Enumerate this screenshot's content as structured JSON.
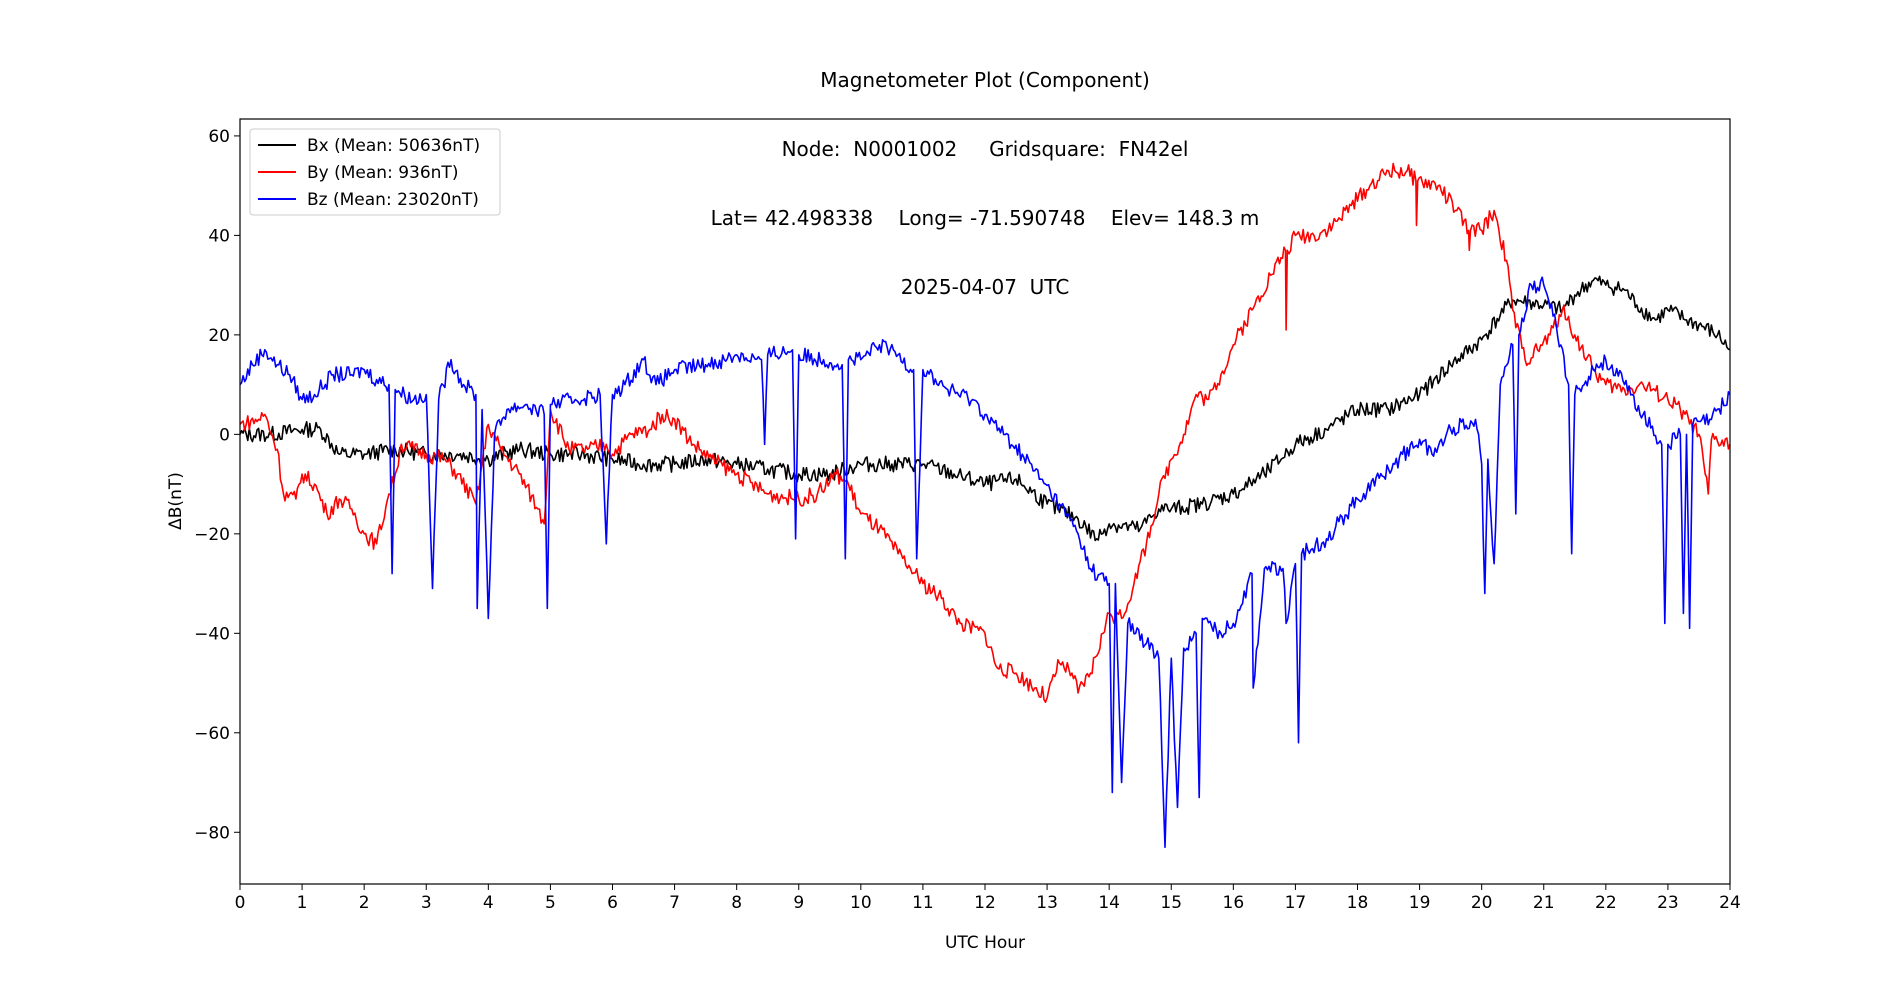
{
  "chart_data": {
    "type": "line",
    "title_lines": [
      "Magnetometer Plot (Component)",
      "Node:  N0001002     Gridsquare:  FN42el",
      "Lat= 42.498338    Long= -71.590748    Elev= 148.3 m",
      "2025-04-07  UTC"
    ],
    "xlabel": "UTC Hour",
    "ylabel": "ΔB(nT)",
    "xlim": [
      0,
      24
    ],
    "ylim": [
      -90.4,
      63.4
    ],
    "xticks": [
      0,
      1,
      2,
      3,
      4,
      5,
      6,
      7,
      8,
      9,
      10,
      11,
      12,
      13,
      14,
      15,
      16,
      17,
      18,
      19,
      20,
      21,
      22,
      23,
      24
    ],
    "yticks": [
      -80,
      -60,
      -40,
      -20,
      0,
      20,
      40,
      60
    ],
    "grid": false,
    "legend_position": "top-left",
    "series": [
      {
        "name": "Bx (Mean: 50636nT)",
        "color": "#000000",
        "points": [
          [
            0,
            0
          ],
          [
            0.5,
            0
          ],
          [
            1,
            1
          ],
          [
            1.3,
            1
          ],
          [
            1.6,
            -4
          ],
          [
            2,
            -4
          ],
          [
            2.5,
            -3
          ],
          [
            3,
            -4
          ],
          [
            3.5,
            -4
          ],
          [
            4,
            -5
          ],
          [
            4.5,
            -3
          ],
          [
            5,
            -4
          ],
          [
            5.5,
            -4
          ],
          [
            6,
            -5
          ],
          [
            6.5,
            -6
          ],
          [
            7,
            -6
          ],
          [
            7.5,
            -5
          ],
          [
            8,
            -6
          ],
          [
            8.5,
            -7
          ],
          [
            9,
            -8
          ],
          [
            9.5,
            -8
          ],
          [
            10,
            -6
          ],
          [
            10.5,
            -6
          ],
          [
            11,
            -6
          ],
          [
            11.5,
            -8
          ],
          [
            12,
            -10
          ],
          [
            12.5,
            -9
          ],
          [
            13,
            -14
          ],
          [
            13.5,
            -17
          ],
          [
            13.8,
            -21
          ],
          [
            14,
            -18
          ],
          [
            14.5,
            -19
          ],
          [
            14.8,
            -15
          ],
          [
            15,
            -15
          ],
          [
            15.5,
            -14
          ],
          [
            16,
            -12
          ],
          [
            16.5,
            -8
          ],
          [
            17,
            -2
          ],
          [
            17.5,
            1
          ],
          [
            18,
            5
          ],
          [
            18.5,
            5
          ],
          [
            19,
            8
          ],
          [
            19.5,
            14
          ],
          [
            20,
            19
          ],
          [
            20.3,
            24
          ],
          [
            20.5,
            27
          ],
          [
            21,
            26
          ],
          [
            21.3,
            25
          ],
          [
            21.5,
            28
          ],
          [
            21.8,
            31
          ],
          [
            22,
            30
          ],
          [
            22.3,
            29
          ],
          [
            22.5,
            26
          ],
          [
            22.8,
            23
          ],
          [
            23,
            25
          ],
          [
            23.3,
            23
          ],
          [
            23.5,
            22
          ],
          [
            23.8,
            20
          ],
          [
            24,
            17
          ]
        ]
      },
      {
        "name": "By (Mean: 936nT)",
        "color": "#ff0000",
        "points": [
          [
            0,
            2
          ],
          [
            0.3,
            3
          ],
          [
            0.4,
            4
          ],
          [
            0.6,
            -3
          ],
          [
            0.7,
            -12
          ],
          [
            0.9,
            -13
          ],
          [
            1,
            -8
          ],
          [
            1.2,
            -10
          ],
          [
            1.4,
            -16
          ],
          [
            1.6,
            -13
          ],
          [
            1.8,
            -15
          ],
          [
            2,
            -20
          ],
          [
            2.2,
            -22
          ],
          [
            2.4,
            -12
          ],
          [
            2.5,
            -8
          ],
          [
            2.6,
            -2
          ],
          [
            3,
            -4
          ],
          [
            3.3,
            -5
          ],
          [
            3.5,
            -8
          ],
          [
            3.8,
            -14
          ],
          [
            4,
            2
          ],
          [
            4.2,
            -3
          ],
          [
            4.5,
            -8
          ],
          [
            4.8,
            -15
          ],
          [
            4.9,
            -18
          ],
          [
            5,
            5
          ],
          [
            5.3,
            -3
          ],
          [
            5.6,
            -3
          ],
          [
            5.9,
            -2
          ],
          [
            6,
            -4
          ],
          [
            6.3,
            0
          ],
          [
            6.6,
            1
          ],
          [
            6.8,
            4
          ],
          [
            7,
            3
          ],
          [
            7.3,
            -2
          ],
          [
            7.6,
            -5
          ],
          [
            8,
            -8
          ],
          [
            8.5,
            -12
          ],
          [
            9,
            -13
          ],
          [
            9.3,
            -12
          ],
          [
            9.6,
            -8
          ],
          [
            9.8,
            -10
          ],
          [
            10,
            -16
          ],
          [
            10.3,
            -19
          ],
          [
            10.6,
            -24
          ],
          [
            10.8,
            -27
          ],
          [
            11,
            -30
          ],
          [
            11.3,
            -33
          ],
          [
            11.6,
            -38
          ],
          [
            12,
            -40
          ],
          [
            12.2,
            -47
          ],
          [
            12.5,
            -48
          ],
          [
            12.8,
            -51
          ],
          [
            13,
            -53
          ],
          [
            13.2,
            -46
          ],
          [
            13.4,
            -48
          ],
          [
            13.5,
            -52
          ],
          [
            13.7,
            -48
          ],
          [
            13.9,
            -40
          ],
          [
            14,
            -36
          ],
          [
            14.2,
            -37
          ],
          [
            14.4,
            -30
          ],
          [
            14.6,
            -22
          ],
          [
            14.8,
            -12
          ],
          [
            15,
            -5
          ],
          [
            15.2,
            0
          ],
          [
            15.4,
            8
          ],
          [
            15.6,
            7
          ],
          [
            15.8,
            12
          ],
          [
            16,
            18
          ],
          [
            16.3,
            25
          ],
          [
            16.6,
            32
          ],
          [
            16.84,
            37
          ],
          [
            16.85,
            21
          ],
          [
            16.87,
            37
          ],
          [
            17,
            40
          ],
          [
            17.3,
            40
          ],
          [
            17.6,
            42
          ],
          [
            17.9,
            46
          ],
          [
            18.2,
            50
          ],
          [
            18.5,
            53
          ],
          [
            18.8,
            53
          ],
          [
            18.94,
            51
          ],
          [
            18.95,
            42
          ],
          [
            18.97,
            51
          ],
          [
            19.3,
            50
          ],
          [
            19.6,
            45
          ],
          [
            19.79,
            41
          ],
          [
            19.8,
            37
          ],
          [
            19.82,
            41
          ],
          [
            20,
            41
          ],
          [
            20.2,
            45
          ],
          [
            20.4,
            35
          ],
          [
            20.5,
            25
          ],
          [
            20.7,
            15
          ],
          [
            20.9,
            17
          ],
          [
            21.1,
            20
          ],
          [
            21.3,
            25
          ],
          [
            21.5,
            20
          ],
          [
            21.8,
            13
          ],
          [
            22,
            10
          ],
          [
            22.3,
            9
          ],
          [
            22.6,
            10
          ],
          [
            23,
            7
          ],
          [
            23.2,
            5
          ],
          [
            23.5,
            0
          ],
          [
            23.65,
            -12
          ],
          [
            23.7,
            -1
          ],
          [
            24,
            -2
          ]
        ]
      },
      {
        "name": "Bz (Mean: 23020nT)",
        "color": "#0000ff",
        "points": [
          [
            0,
            10
          ],
          [
            0.2,
            14
          ],
          [
            0.4,
            17
          ],
          [
            0.6,
            14
          ],
          [
            0.8,
            12
          ],
          [
            1,
            7
          ],
          [
            1.2,
            8
          ],
          [
            1.5,
            12
          ],
          [
            1.8,
            12
          ],
          [
            2,
            13
          ],
          [
            2.2,
            11
          ],
          [
            2.4,
            10
          ],
          [
            2.45,
            -28
          ],
          [
            2.5,
            9
          ],
          [
            2.8,
            7
          ],
          [
            3,
            8
          ],
          [
            3.1,
            -31
          ],
          [
            3.2,
            7
          ],
          [
            3.4,
            15
          ],
          [
            3.6,
            10
          ],
          [
            3.8,
            8
          ],
          [
            3.82,
            -35
          ],
          [
            3.9,
            5
          ],
          [
            4.0,
            -37
          ],
          [
            4.1,
            0
          ],
          [
            4.3,
            5
          ],
          [
            4.6,
            6
          ],
          [
            4.9,
            4
          ],
          [
            4.95,
            -35
          ],
          [
            5.0,
            6
          ],
          [
            5.4,
            7
          ],
          [
            5.8,
            8
          ],
          [
            5.9,
            -22
          ],
          [
            6,
            8
          ],
          [
            6.2,
            10
          ],
          [
            6.5,
            15
          ],
          [
            6.7,
            10
          ],
          [
            7,
            13
          ],
          [
            7.5,
            14
          ],
          [
            7.8,
            15
          ],
          [
            8,
            16
          ],
          [
            8.4,
            15
          ],
          [
            8.45,
            -2
          ],
          [
            8.5,
            16
          ],
          [
            8.9,
            17
          ],
          [
            8.95,
            -21
          ],
          [
            9,
            16
          ],
          [
            9.4,
            15
          ],
          [
            9.7,
            14
          ],
          [
            9.75,
            -25
          ],
          [
            9.8,
            15
          ],
          [
            10,
            15
          ],
          [
            10.3,
            18
          ],
          [
            10.6,
            16
          ],
          [
            10.85,
            13
          ],
          [
            10.9,
            -25
          ],
          [
            11,
            13
          ],
          [
            11.4,
            9
          ],
          [
            11.8,
            7
          ],
          [
            12,
            4
          ],
          [
            12.3,
            0
          ],
          [
            12.6,
            -4
          ],
          [
            12.9,
            -9
          ],
          [
            13.2,
            -14
          ],
          [
            13.5,
            -20
          ],
          [
            13.7,
            -27
          ],
          [
            14,
            -30
          ],
          [
            14.05,
            -72
          ],
          [
            14.1,
            -30
          ],
          [
            14.2,
            -70
          ],
          [
            14.3,
            -38
          ],
          [
            14.6,
            -42
          ],
          [
            14.8,
            -45
          ],
          [
            14.9,
            -83
          ],
          [
            15,
            -45
          ],
          [
            15.1,
            -75
          ],
          [
            15.2,
            -43
          ],
          [
            15.4,
            -40
          ],
          [
            15.45,
            -73
          ],
          [
            15.5,
            -37
          ],
          [
            15.8,
            -40
          ],
          [
            16,
            -38
          ],
          [
            16.3,
            -28
          ],
          [
            16.32,
            -51
          ],
          [
            16.5,
            -27
          ],
          [
            16.8,
            -27
          ],
          [
            16.85,
            -38
          ],
          [
            17,
            -26
          ],
          [
            17.05,
            -62
          ],
          [
            17.1,
            -24
          ],
          [
            17.5,
            -21
          ],
          [
            18,
            -13
          ],
          [
            18.5,
            -7
          ],
          [
            19,
            -1
          ],
          [
            19.2,
            -4
          ],
          [
            19.5,
            1
          ],
          [
            19.9,
            3
          ],
          [
            20,
            -6
          ],
          [
            20.05,
            -32
          ],
          [
            20.1,
            -5
          ],
          [
            20.2,
            -26
          ],
          [
            20.3,
            10
          ],
          [
            20.5,
            18
          ],
          [
            20.55,
            -16
          ],
          [
            20.6,
            20
          ],
          [
            20.8,
            30
          ],
          [
            21,
            30
          ],
          [
            21.2,
            22
          ],
          [
            21.4,
            10
          ],
          [
            21.45,
            -24
          ],
          [
            21.5,
            8
          ],
          [
            21.8,
            13
          ],
          [
            22,
            15
          ],
          [
            22.3,
            10
          ],
          [
            22.6,
            4
          ],
          [
            22.9,
            -2
          ],
          [
            22.95,
            -38
          ],
          [
            23,
            -2
          ],
          [
            23.2,
            0
          ],
          [
            23.25,
            -36
          ],
          [
            23.3,
            0
          ],
          [
            23.35,
            -39
          ],
          [
            23.4,
            2
          ],
          [
            23.7,
            3
          ],
          [
            24,
            8
          ]
        ]
      }
    ]
  }
}
